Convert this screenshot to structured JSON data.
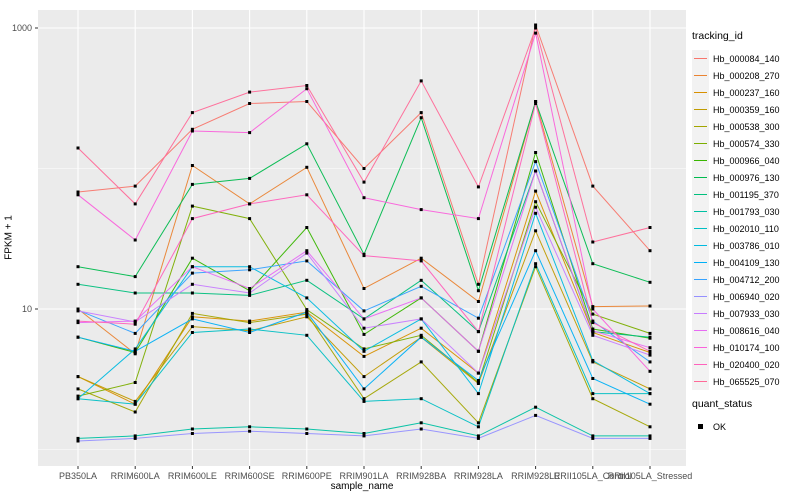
{
  "figure": {
    "background": "#ffffff",
    "panel_bg": "#EBEBEB",
    "gridline_color": "#FFFFFF",
    "tick_text_color": "#4D4D4D",
    "y_axis": {
      "title": "FPKM + 1",
      "tick_labels": [
        "1000",
        "10"
      ],
      "tick_values": [
        1000,
        10
      ]
    },
    "x_axis": {
      "title": "sample_name"
    },
    "legend": {
      "tracking_title": "tracking_id",
      "quant_title": "quant_status",
      "quant_item_label": "OK",
      "quant_marker_color": "#000000",
      "key_bg": "#F2F2F2"
    }
  },
  "chart_data": {
    "type": "line",
    "title": "",
    "xlabel": "sample_name",
    "ylabel": "FPKM + 1",
    "y_scale": "log10",
    "ylim": [
      0.76,
      1350
    ],
    "grid": "on",
    "legend_position": "right",
    "major_breaks": [
      10,
      1000
    ],
    "minor_breaks": [
      1,
      100
    ],
    "point_marker": {
      "shape": "square",
      "color": "#000000",
      "label": "OK"
    },
    "categories": [
      "PB350LA",
      "RRIM600LA",
      "RRIM600LE",
      "RRIM600SE",
      "RRIM600PE",
      "RRIM901LA",
      "RRIM928BA",
      "RRIM928LA",
      "RRIM928LE",
      "RRII105LA_Control",
      "RRII105LA_Stressed"
    ],
    "series": [
      {
        "name": "Hb_000084_140",
        "color": "#F8766D",
        "values": [
          68,
          75,
          190,
          290,
          300,
          100,
          250,
          15,
          1050,
          75,
          26
        ]
      },
      {
        "name": "Hb_000208_270",
        "color": "#EA8331",
        "values": [
          10,
          4.8,
          105,
          56,
          102,
          14,
          23,
          11.3,
          300,
          10.4,
          10.5
        ]
      },
      {
        "name": "Hb_000237_160",
        "color": "#D89000",
        "values": [
          3.3,
          2.1,
          8.8,
          8.2,
          9.5,
          4.6,
          7.3,
          3.5,
          69,
          6.8,
          4.9
        ]
      },
      {
        "name": "Hb_000359_160",
        "color": "#C09B00",
        "values": [
          3.3,
          2.2,
          7.5,
          7.0,
          8.8,
          3.3,
          6.3,
          2.95,
          36,
          4.2,
          2.7
        ]
      },
      {
        "name": "Hb_000538_300",
        "color": "#A3A500",
        "values": [
          2.7,
          1.85,
          9.3,
          8.0,
          9.2,
          2.3,
          4.2,
          1.55,
          20,
          2.3,
          1.45
        ]
      },
      {
        "name": "Hb_000574_330",
        "color": "#7CAE00",
        "values": [
          2.4,
          3.0,
          54,
          44,
          9.9,
          5.2,
          6.5,
          3.0,
          58,
          9.2,
          6.7
        ]
      },
      {
        "name": "Hb_000966_040",
        "color": "#39B600",
        "values": [
          6.3,
          4.9,
          23,
          13.5,
          38,
          6.6,
          12,
          5.0,
          130,
          7.2,
          6.2
        ]
      },
      {
        "name": "Hb_000976_130",
        "color": "#00BB4E",
        "values": [
          20,
          17,
          77,
          85,
          150,
          24.5,
          230,
          13.5,
          300,
          21,
          15.5
        ]
      },
      {
        "name": "Hb_001195_370",
        "color": "#00BF7D",
        "values": [
          15,
          13,
          13,
          12.5,
          16,
          8.5,
          16,
          6.9,
          96,
          6.9,
          6.3
        ]
      },
      {
        "name": "Hb_001793_030",
        "color": "#00C1A3",
        "values": [
          1.2,
          1.25,
          1.4,
          1.45,
          1.4,
          1.3,
          1.55,
          1.25,
          2.0,
          1.25,
          1.25
        ]
      },
      {
        "name": "Hb_002010_110",
        "color": "#00BFC4",
        "values": [
          2.3,
          2.1,
          6.8,
          7.2,
          6.5,
          2.2,
          2.3,
          1.45,
          21,
          2.5,
          2.5
        ]
      },
      {
        "name": "Hb_003786_010",
        "color": "#00BAE0",
        "values": [
          2.3,
          5.2,
          20,
          20,
          12,
          5.0,
          8.5,
          2.5,
          48,
          4.3,
          2.5
        ]
      },
      {
        "name": "Hb_004109_130",
        "color": "#00B0F6",
        "values": [
          6.3,
          5.0,
          8.5,
          6.8,
          9.5,
          2.7,
          6.3,
          3.1,
          26,
          3.2,
          2.1
        ]
      },
      {
        "name": "Hb_004712_200",
        "color": "#35A2FF",
        "values": [
          9.8,
          6.7,
          18,
          19,
          22,
          9.7,
          14.5,
          8.6,
          112,
          8.2,
          4.2
        ]
      },
      {
        "name": "Hb_006940_020",
        "color": "#9590FF",
        "values": [
          1.15,
          1.2,
          1.3,
          1.35,
          1.3,
          1.25,
          1.4,
          1.2,
          1.75,
          1.2,
          1.2
        ]
      },
      {
        "name": "Hb_007933_030",
        "color": "#C77CFF",
        "values": [
          9.7,
          8.1,
          15,
          13,
          25,
          7.3,
          8.5,
          3.5,
          53,
          6.5,
          4.7
        ]
      },
      {
        "name": "Hb_008616_040",
        "color": "#E76BF3",
        "values": [
          8.0,
          8.2,
          20,
          14,
          26,
          8.5,
          12,
          5.0,
          96,
          7.0,
          5.3
        ]
      },
      {
        "name": "Hb_010174_100",
        "color": "#FA62DB",
        "values": [
          65,
          31,
          185,
          180,
          370,
          62,
          51,
          44,
          920,
          10,
          3.6
        ]
      },
      {
        "name": "Hb_020400_020",
        "color": "#FF62BC",
        "values": [
          8.2,
          7.8,
          44,
          56,
          65,
          24,
          22,
          6.9,
          290,
          8.0,
          5.0
        ]
      },
      {
        "name": "Hb_065525_070",
        "color": "#FF6A98",
        "values": [
          140,
          56,
          250,
          350,
          390,
          80,
          420,
          74,
          1000,
          30,
          38
        ]
      }
    ]
  }
}
